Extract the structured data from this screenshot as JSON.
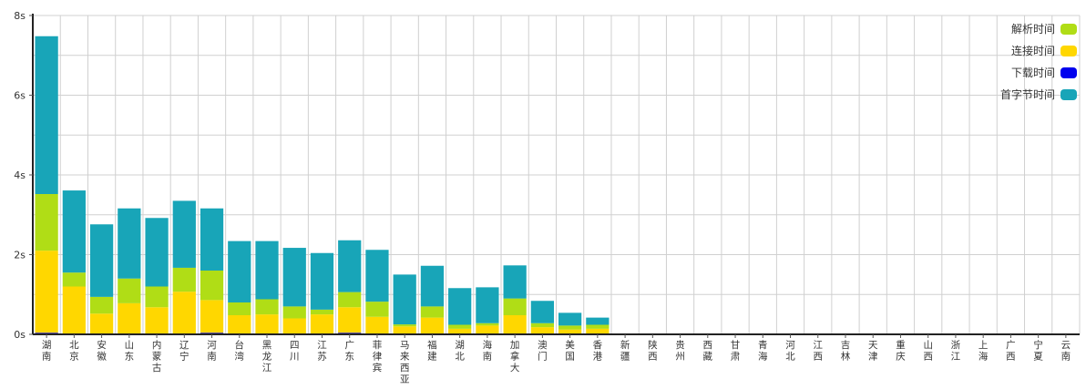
{
  "chart_data": {
    "type": "bar",
    "stacked": true,
    "categories": [
      "湖南",
      "北京",
      "安徽",
      "山东",
      "内蒙古",
      "辽宁",
      "河南",
      "台湾",
      "黑龙江",
      "四川",
      "江苏",
      "广东",
      "菲律宾",
      "马来西亚",
      "福建",
      "湖北",
      "海南",
      "加拿大",
      "澳门",
      "美国",
      "香港",
      "新疆",
      "陕西",
      "贵州",
      "西藏",
      "甘肃",
      "青海",
      "河北",
      "江西",
      "吉林",
      "天津",
      "重庆",
      "山西",
      "浙江",
      "上海",
      "广西",
      "宁夏",
      "云南"
    ],
    "series": [
      {
        "name": "下载时间",
        "color": "#0000ee",
        "values": [
          0.04,
          0.02,
          0.02,
          0.02,
          0.02,
          0.02,
          0.04,
          0.02,
          0.02,
          0.02,
          0.02,
          0.04,
          0.02,
          0.02,
          0.02,
          0.02,
          0.02,
          0.02,
          0.02,
          0.02,
          0.02,
          0,
          0,
          0,
          0,
          0,
          0,
          0,
          0,
          0,
          0,
          0,
          0,
          0,
          0,
          0,
          0,
          0
        ]
      },
      {
        "name": "连接时间",
        "color": "#ffd700",
        "values": [
          2.06,
          1.18,
          0.5,
          0.76,
          0.66,
          1.05,
          0.82,
          0.46,
          0.48,
          0.38,
          0.48,
          0.64,
          0.42,
          0.18,
          0.4,
          0.12,
          0.2,
          0.46,
          0.16,
          0.1,
          0.12,
          0,
          0,
          0,
          0,
          0,
          0,
          0,
          0,
          0,
          0,
          0,
          0,
          0,
          0,
          0,
          0,
          0
        ]
      },
      {
        "name": "解析时间",
        "color": "#b0dd16",
        "values": [
          1.42,
          0.35,
          0.42,
          0.62,
          0.52,
          0.6,
          0.74,
          0.32,
          0.38,
          0.3,
          0.12,
          0.38,
          0.38,
          0.05,
          0.28,
          0.1,
          0.06,
          0.42,
          0.1,
          0.1,
          0.1,
          0,
          0,
          0,
          0,
          0,
          0,
          0,
          0,
          0,
          0,
          0,
          0,
          0,
          0,
          0,
          0,
          0
        ]
      },
      {
        "name": "首字节时间",
        "color": "#18a5b8",
        "values": [
          3.96,
          2.06,
          1.82,
          1.76,
          1.72,
          1.68,
          1.56,
          1.54,
          1.46,
          1.47,
          1.42,
          1.3,
          1.3,
          1.25,
          1.02,
          0.92,
          0.9,
          0.83,
          0.56,
          0.32,
          0.18,
          0,
          0,
          0,
          0,
          0,
          0,
          0,
          0,
          0,
          0,
          0,
          0,
          0,
          0,
          0,
          0,
          0
        ]
      }
    ],
    "legend_order": [
      "解析时间",
      "连接时间",
      "下载时间",
      "首字节时间"
    ],
    "legend_position": "top-right",
    "yticks": [
      "0s",
      "2s",
      "4s",
      "6s",
      "8s"
    ],
    "ylim": [
      0,
      8
    ],
    "grid": true,
    "title": "",
    "xlabel": "",
    "ylabel": ""
  }
}
